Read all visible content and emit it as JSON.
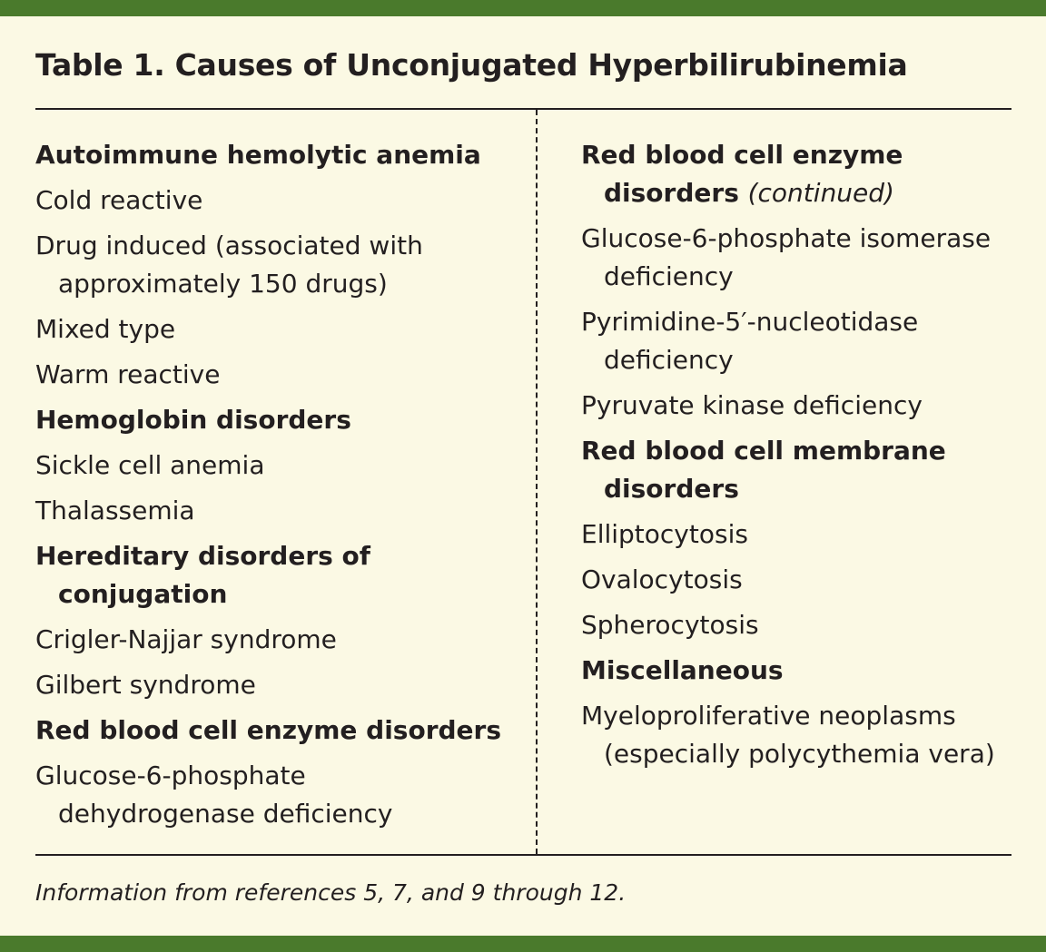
{
  "table": {
    "title": "Table 1. Causes of Unconjugated Hyperbilirubinemia",
    "left_column": [
      {
        "type": "heading",
        "lines": [
          "Autoimmune hemolytic anemia"
        ]
      },
      {
        "type": "item",
        "lines": [
          "Cold reactive"
        ]
      },
      {
        "type": "item",
        "lines": [
          "Drug induced (associated with",
          "approximately 150 drugs)"
        ]
      },
      {
        "type": "item",
        "lines": [
          "Mixed type"
        ]
      },
      {
        "type": "item",
        "lines": [
          "Warm reactive"
        ]
      },
      {
        "type": "heading",
        "lines": [
          "Hemoglobin disorders"
        ]
      },
      {
        "type": "item",
        "lines": [
          "Sickle cell anemia"
        ]
      },
      {
        "type": "item",
        "lines": [
          "Thalassemia"
        ]
      },
      {
        "type": "heading",
        "lines": [
          "Hereditary disorders of",
          "conjugation"
        ]
      },
      {
        "type": "item",
        "lines": [
          "Crigler-Najjar syndrome"
        ]
      },
      {
        "type": "item",
        "lines": [
          "Gilbert syndrome"
        ]
      },
      {
        "type": "heading",
        "lines": [
          "Red blood cell enzyme disorders"
        ]
      },
      {
        "type": "item",
        "lines": [
          "Glucose-6-phosphate",
          "dehydrogenase deficiency"
        ]
      }
    ],
    "right_column": [
      {
        "type": "heading",
        "lines": [
          "Red blood cell enzyme",
          "disorders"
        ],
        "note": "(continued)"
      },
      {
        "type": "item",
        "lines": [
          "Glucose-6-phosphate isomerase",
          "deficiency"
        ]
      },
      {
        "type": "item",
        "lines": [
          "Pyrimidine-5′-nucleotidase",
          "deficiency"
        ]
      },
      {
        "type": "item",
        "lines": [
          "Pyruvate kinase deficiency"
        ]
      },
      {
        "type": "heading",
        "lines": [
          "Red blood cell membrane",
          "disorders"
        ]
      },
      {
        "type": "item",
        "lines": [
          "Elliptocytosis"
        ]
      },
      {
        "type": "item",
        "lines": [
          "Ovalocytosis"
        ]
      },
      {
        "type": "item",
        "lines": [
          "Spherocytosis"
        ]
      },
      {
        "type": "heading",
        "lines": [
          "Miscellaneous"
        ]
      },
      {
        "type": "item",
        "lines": [
          "Myeloproliferative neoplasms",
          "(especially polycythemia vera)"
        ]
      }
    ],
    "footnote": "Information from references 5, 7, and 9 through 12."
  },
  "colors": {
    "background": "#fbf9e4",
    "accent_bar": "#4a7a2c",
    "text": "#231f20"
  }
}
